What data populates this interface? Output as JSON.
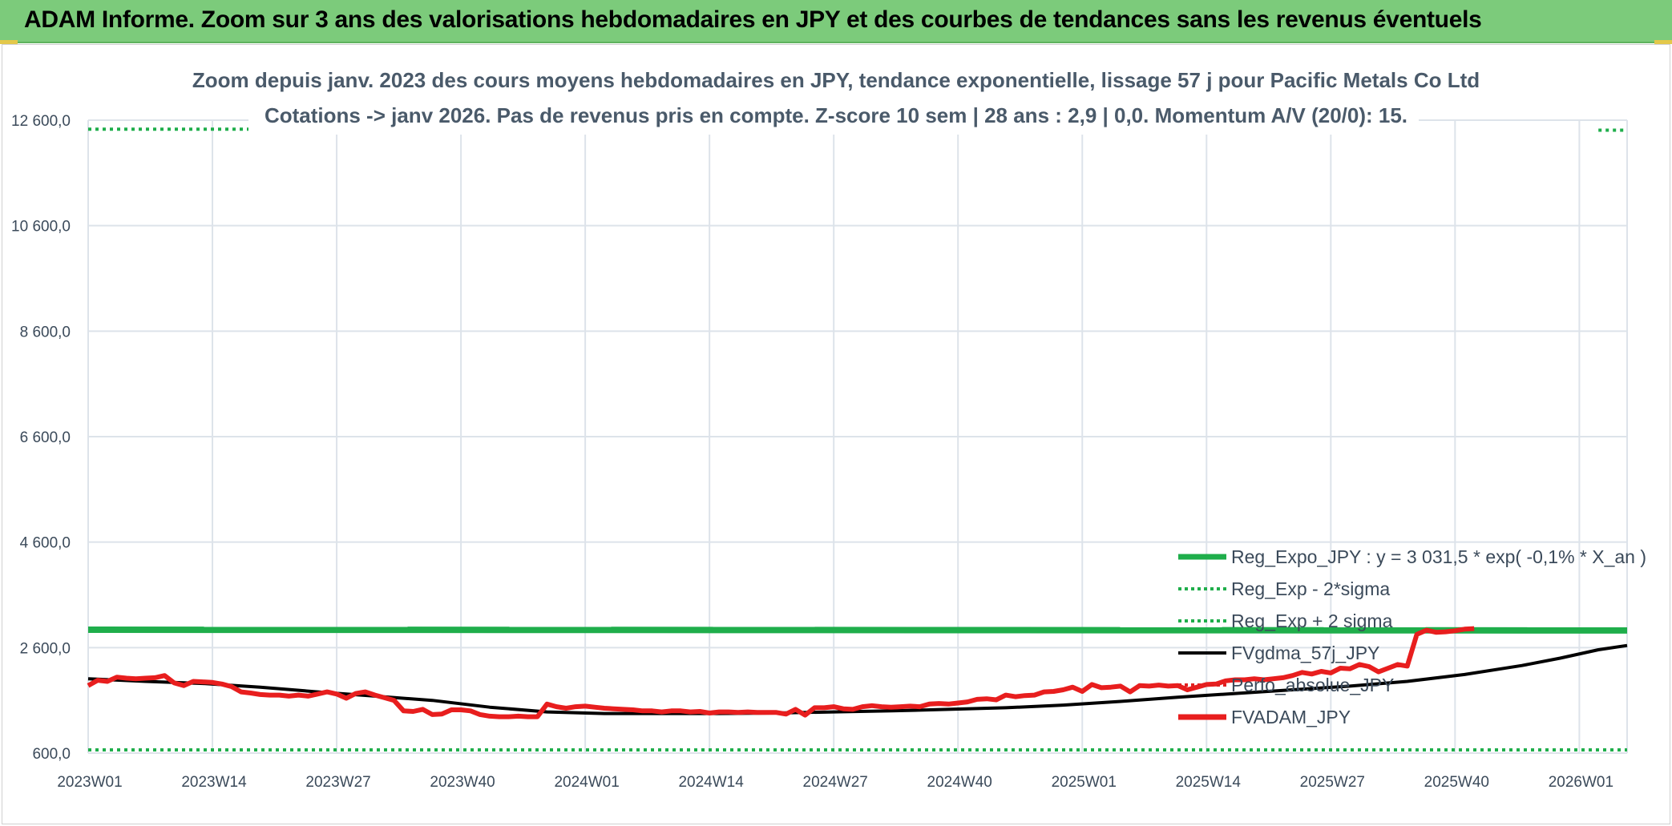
{
  "banner": {
    "title": "ADAM Informe. Zoom sur 3 ans des valorisations hebdomadaires en JPY et des courbes de tendances sans les revenus éventuels"
  },
  "colors": {
    "banner_bg": "#7ccb7b",
    "reg_expo": "#1fae4b",
    "sigma_bands": "#1fae4b",
    "fvgdma": "#000000",
    "perfo_absolue": "#e02020",
    "fvadam": "#e81e1e",
    "grid": "#dde3ea"
  },
  "chart_data": {
    "type": "line",
    "title_line1": "Zoom depuis janv. 2023 des cours moyens hebdomadaires en JPY, tendance exponentielle, lissage 57 j pour Pacific Metals Co Ltd",
    "title_line2": "Cotations -> janv 2026. Pas de revenus pris en compte. Z-score 10 sem | 28 ans : 2,9 | 0,0. Momentum A/V (20/0): 15.",
    "xlabel": "",
    "ylabel": "",
    "ylim": [
      600,
      12600
    ],
    "y_ticks": [
      "12 600,0",
      "10 600,0",
      "8 600,0",
      "6 600,0",
      "4 600,0",
      "2 600,0",
      "600,0"
    ],
    "y_tick_values": [
      12600,
      10600,
      8600,
      6600,
      4600,
      2600,
      600
    ],
    "x_ticks": [
      "2023W01",
      "2023W14",
      "2023W27",
      "2023W40",
      "2024W01",
      "2024W14",
      "2024W27",
      "2024W40",
      "2025W01",
      "2025W14",
      "2025W27",
      "2025W40",
      "2026W01"
    ],
    "x_tick_index": [
      0,
      13,
      26,
      39,
      52,
      65,
      78,
      91,
      104,
      117,
      130,
      143,
      156
    ],
    "x_max_index": 161,
    "grid": true,
    "legend_position": "bottom-right",
    "legend": [
      {
        "label": "Reg_Expo_JPY : y = 3 031,5 * exp( -0,1% *  X_an )",
        "style": "solid-thick",
        "color": "#1fae4b"
      },
      {
        "label": "Reg_Exp - 2*sigma",
        "style": "dotted",
        "color": "#1fae4b"
      },
      {
        "label": "Reg_Exp + 2 sigma",
        "style": "dotted",
        "color": "#1fae4b"
      },
      {
        "label": "FVgdma_57j_JPY",
        "style": "solid",
        "color": "#000000"
      },
      {
        "label": "Perfo_absolue_JPY",
        "style": "dotted",
        "color": "#e02020"
      },
      {
        "label": "FVADAM_JPY",
        "style": "solid-thick",
        "color": "#e81e1e"
      }
    ],
    "series": [
      {
        "name": "Reg_Expo_JPY : y = 3 031,5 * exp( -0,1% *  X_an )",
        "points": [
          [
            0,
            2940
          ],
          [
            161,
            2925
          ]
        ]
      },
      {
        "name": "Reg_Exp - 2*sigma",
        "points": [
          [
            0,
            660
          ],
          [
            161,
            660
          ]
        ]
      },
      {
        "name": "Reg_Exp + 2 sigma",
        "segments": [
          [
            [
              0,
              12430
            ],
            [
              19,
              12430
            ]
          ],
          [
            [
              158,
              12410
            ],
            [
              180,
              12410
            ]
          ]
        ]
      },
      {
        "name": "FVgdma_57j_JPY",
        "points": [
          [
            0,
            2010
          ],
          [
            6,
            1960
          ],
          [
            12,
            1920
          ],
          [
            18,
            1850
          ],
          [
            24,
            1760
          ],
          [
            30,
            1680
          ],
          [
            36,
            1600
          ],
          [
            42,
            1470
          ],
          [
            48,
            1380
          ],
          [
            54,
            1350
          ],
          [
            60,
            1350
          ],
          [
            66,
            1350
          ],
          [
            72,
            1360
          ],
          [
            78,
            1380
          ],
          [
            84,
            1400
          ],
          [
            90,
            1430
          ],
          [
            96,
            1460
          ],
          [
            102,
            1510
          ],
          [
            108,
            1580
          ],
          [
            114,
            1660
          ],
          [
            120,
            1730
          ],
          [
            126,
            1800
          ],
          [
            132,
            1870
          ],
          [
            138,
            1960
          ],
          [
            144,
            2090
          ],
          [
            150,
            2260
          ],
          [
            154,
            2400
          ],
          [
            158,
            2560
          ],
          [
            161,
            2640
          ]
        ]
      },
      {
        "name": "FVADAM_JPY",
        "points": [
          [
            0,
            1880
          ],
          [
            1,
            1980
          ],
          [
            2,
            1960
          ],
          [
            3,
            2040
          ],
          [
            4,
            2020
          ],
          [
            5,
            2010
          ],
          [
            6,
            2020
          ],
          [
            7,
            2030
          ],
          [
            8,
            2070
          ],
          [
            9,
            1930
          ],
          [
            10,
            1880
          ],
          [
            11,
            1960
          ],
          [
            12,
            1950
          ],
          [
            13,
            1940
          ],
          [
            14,
            1910
          ],
          [
            15,
            1860
          ],
          [
            16,
            1760
          ],
          [
            17,
            1740
          ],
          [
            18,
            1710
          ],
          [
            19,
            1700
          ],
          [
            20,
            1700
          ],
          [
            21,
            1680
          ],
          [
            22,
            1700
          ],
          [
            23,
            1680
          ],
          [
            24,
            1720
          ],
          [
            25,
            1760
          ],
          [
            26,
            1720
          ],
          [
            27,
            1640
          ],
          [
            28,
            1730
          ],
          [
            29,
            1760
          ],
          [
            30,
            1700
          ],
          [
            31,
            1650
          ],
          [
            32,
            1600
          ],
          [
            33,
            1400
          ],
          [
            34,
            1390
          ],
          [
            35,
            1430
          ],
          [
            36,
            1330
          ],
          [
            37,
            1340
          ],
          [
            38,
            1420
          ],
          [
            39,
            1420
          ],
          [
            40,
            1400
          ],
          [
            41,
            1330
          ],
          [
            42,
            1300
          ],
          [
            43,
            1290
          ],
          [
            44,
            1290
          ],
          [
            45,
            1300
          ],
          [
            46,
            1290
          ],
          [
            47,
            1290
          ],
          [
            48,
            1530
          ],
          [
            49,
            1480
          ],
          [
            50,
            1450
          ],
          [
            51,
            1480
          ],
          [
            52,
            1490
          ],
          [
            53,
            1470
          ],
          [
            54,
            1450
          ],
          [
            55,
            1440
          ],
          [
            56,
            1430
          ],
          [
            57,
            1420
          ],
          [
            58,
            1400
          ],
          [
            59,
            1400
          ],
          [
            60,
            1380
          ],
          [
            61,
            1400
          ],
          [
            62,
            1400
          ],
          [
            63,
            1380
          ],
          [
            64,
            1390
          ],
          [
            65,
            1360
          ],
          [
            66,
            1380
          ],
          [
            67,
            1380
          ],
          [
            68,
            1370
          ],
          [
            69,
            1380
          ],
          [
            70,
            1370
          ],
          [
            71,
            1370
          ],
          [
            72,
            1370
          ],
          [
            73,
            1340
          ],
          [
            74,
            1430
          ],
          [
            75,
            1320
          ],
          [
            76,
            1460
          ],
          [
            77,
            1460
          ],
          [
            78,
            1480
          ],
          [
            79,
            1440
          ],
          [
            80,
            1430
          ],
          [
            81,
            1480
          ],
          [
            82,
            1500
          ],
          [
            83,
            1480
          ],
          [
            84,
            1470
          ],
          [
            85,
            1480
          ],
          [
            86,
            1490
          ],
          [
            87,
            1480
          ],
          [
            88,
            1530
          ],
          [
            89,
            1540
          ],
          [
            90,
            1530
          ],
          [
            91,
            1550
          ],
          [
            92,
            1570
          ],
          [
            93,
            1620
          ],
          [
            94,
            1630
          ],
          [
            95,
            1610
          ],
          [
            96,
            1700
          ],
          [
            97,
            1670
          ],
          [
            98,
            1690
          ],
          [
            99,
            1700
          ],
          [
            100,
            1760
          ],
          [
            101,
            1770
          ],
          [
            102,
            1800
          ],
          [
            103,
            1850
          ],
          [
            104,
            1770
          ],
          [
            105,
            1900
          ],
          [
            106,
            1840
          ],
          [
            107,
            1850
          ],
          [
            108,
            1870
          ],
          [
            109,
            1760
          ],
          [
            110,
            1880
          ],
          [
            111,
            1870
          ],
          [
            112,
            1890
          ],
          [
            113,
            1870
          ],
          [
            114,
            1880
          ],
          [
            115,
            1800
          ],
          [
            116,
            1850
          ],
          [
            117,
            1900
          ],
          [
            118,
            1910
          ],
          [
            119,
            1970
          ],
          [
            120,
            1990
          ],
          [
            121,
            1990
          ],
          [
            122,
            2010
          ],
          [
            123,
            1990
          ],
          [
            124,
            2010
          ],
          [
            125,
            2030
          ],
          [
            126,
            2070
          ],
          [
            127,
            2130
          ],
          [
            128,
            2100
          ],
          [
            129,
            2150
          ],
          [
            130,
            2120
          ],
          [
            131,
            2210
          ],
          [
            132,
            2200
          ],
          [
            133,
            2280
          ],
          [
            134,
            2240
          ],
          [
            135,
            2140
          ],
          [
            136,
            2210
          ],
          [
            137,
            2280
          ],
          [
            138,
            2250
          ],
          [
            139,
            2850
          ],
          [
            140,
            2930
          ],
          [
            141,
            2890
          ],
          [
            142,
            2900
          ],
          [
            143,
            2920
          ],
          [
            144,
            2950
          ],
          [
            145,
            2960
          ]
        ]
      }
    ]
  }
}
